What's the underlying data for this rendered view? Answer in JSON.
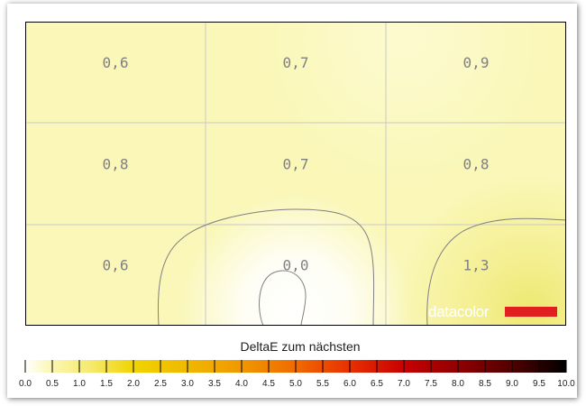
{
  "chart_data": {
    "type": "heatmap",
    "title": "DeltaE zum nächsten",
    "rows": 3,
    "cols": 3,
    "cells": [
      [
        "0,6",
        "0,7",
        "0,9"
      ],
      [
        "0,8",
        "0,7",
        "0,8"
      ],
      [
        "0,6",
        "0,0",
        "1,3"
      ]
    ],
    "values": [
      [
        0.6,
        0.7,
        0.9
      ],
      [
        0.8,
        0.7,
        0.8
      ],
      [
        0.6,
        0.0,
        1.3
      ]
    ],
    "scale": {
      "min": 0,
      "max": 10,
      "step": 0.5,
      "tick_labels": [
        "0.0",
        "0.5",
        "1.0",
        "1.5",
        "2.0",
        "2.5",
        "3.0",
        "3.5",
        "4.0",
        "4.5",
        "5.0",
        "5.5",
        "6.0",
        "6.5",
        "7.0",
        "7.5",
        "8.0",
        "8.5",
        "9.0",
        "9.5",
        "10.0"
      ]
    },
    "colors": {
      "base_fill": "#faf7b8",
      "low": "#ffffff",
      "high": "#eee870",
      "grid": "#c8c8c8",
      "contour": "#808080",
      "brand_bar": "#e0201e"
    }
  },
  "brand": {
    "name": "datacolor",
    "logo_color": "#e0201e"
  }
}
